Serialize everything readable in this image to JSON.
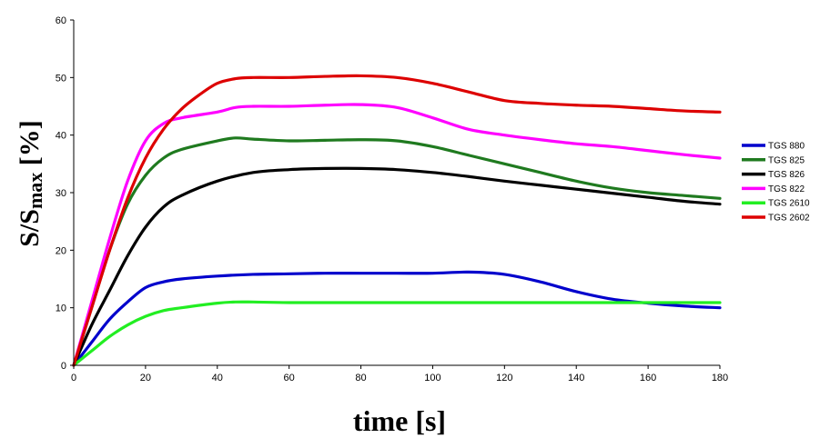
{
  "chart_data": {
    "type": "line",
    "title": "",
    "xlabel": "time [s]",
    "ylabel": "S/S",
    "ylabel_sub": "max",
    "ylabel_suffix": " [%]",
    "xlim": [
      0,
      180
    ],
    "ylim": [
      0,
      60
    ],
    "xticks": [
      "0",
      "20",
      "40",
      "60",
      "80",
      "100",
      "120",
      "140",
      "160",
      "180"
    ],
    "yticks": [
      "0",
      "10",
      "20",
      "30",
      "40",
      "50",
      "60"
    ],
    "grid": false,
    "legend": "right",
    "series": [
      {
        "name": "TGS 880",
        "color": "#0000cc",
        "x": [
          0,
          5,
          10,
          15,
          20,
          25,
          30,
          40,
          50,
          60,
          70,
          80,
          90,
          100,
          110,
          120,
          130,
          140,
          150,
          160,
          170,
          180
        ],
        "y": [
          0,
          4,
          8,
          11,
          13.5,
          14.5,
          15,
          15.5,
          15.8,
          15.9,
          16,
          16,
          16,
          16,
          16.2,
          15.8,
          14.5,
          12.8,
          11.5,
          10.8,
          10.3,
          10
        ]
      },
      {
        "name": "TGS 825",
        "color": "#1f7a1f",
        "x": [
          0,
          5,
          10,
          15,
          20,
          25,
          30,
          40,
          45,
          50,
          60,
          70,
          80,
          90,
          100,
          110,
          120,
          130,
          140,
          150,
          160,
          170,
          180
        ],
        "y": [
          0,
          10,
          20,
          28,
          33,
          36,
          37.5,
          39,
          39.5,
          39.3,
          39,
          39.1,
          39.2,
          39,
          38,
          36.5,
          35,
          33.5,
          32,
          30.8,
          30,
          29.5,
          29
        ]
      },
      {
        "name": "TGS 826",
        "color": "#000000",
        "x": [
          0,
          5,
          10,
          15,
          20,
          25,
          30,
          40,
          50,
          60,
          70,
          80,
          90,
          100,
          110,
          120,
          130,
          140,
          150,
          160,
          170,
          180
        ],
        "y": [
          0,
          7,
          13,
          19,
          24,
          27.5,
          29.5,
          32,
          33.5,
          34,
          34.2,
          34.2,
          34,
          33.5,
          32.8,
          32,
          31.3,
          30.6,
          29.9,
          29.2,
          28.5,
          28
        ]
      },
      {
        "name": "TGS 822",
        "color": "#ff00ff",
        "x": [
          0,
          5,
          10,
          15,
          20,
          25,
          30,
          40,
          45,
          50,
          60,
          70,
          80,
          90,
          100,
          110,
          120,
          130,
          140,
          150,
          160,
          170,
          180
        ],
        "y": [
          0,
          11,
          22,
          32,
          39,
          42,
          43,
          44,
          44.8,
          45,
          45,
          45.2,
          45.3,
          44.8,
          43,
          41,
          40,
          39.2,
          38.5,
          38,
          37.3,
          36.6,
          36
        ]
      },
      {
        "name": "TGS 2610",
        "color": "#22ee22",
        "x": [
          0,
          5,
          10,
          15,
          20,
          25,
          30,
          40,
          45,
          50,
          60,
          80,
          100,
          120,
          140,
          160,
          180
        ],
        "y": [
          0,
          2.5,
          5,
          7,
          8.5,
          9.5,
          10,
          10.8,
          11,
          11,
          10.9,
          10.9,
          10.9,
          10.9,
          10.9,
          10.9,
          10.9
        ]
      },
      {
        "name": "TGS 2602",
        "color": "#dd0000",
        "x": [
          0,
          5,
          10,
          15,
          20,
          25,
          30,
          35,
          40,
          45,
          50,
          60,
          70,
          80,
          90,
          100,
          110,
          120,
          130,
          140,
          150,
          160,
          170,
          180
        ],
        "y": [
          0,
          10,
          20,
          29,
          36,
          41,
          44.5,
          47,
          49,
          49.8,
          50,
          50,
          50.2,
          50.3,
          50,
          49,
          47.5,
          46,
          45.5,
          45.2,
          45,
          44.6,
          44.2,
          44
        ]
      }
    ]
  }
}
